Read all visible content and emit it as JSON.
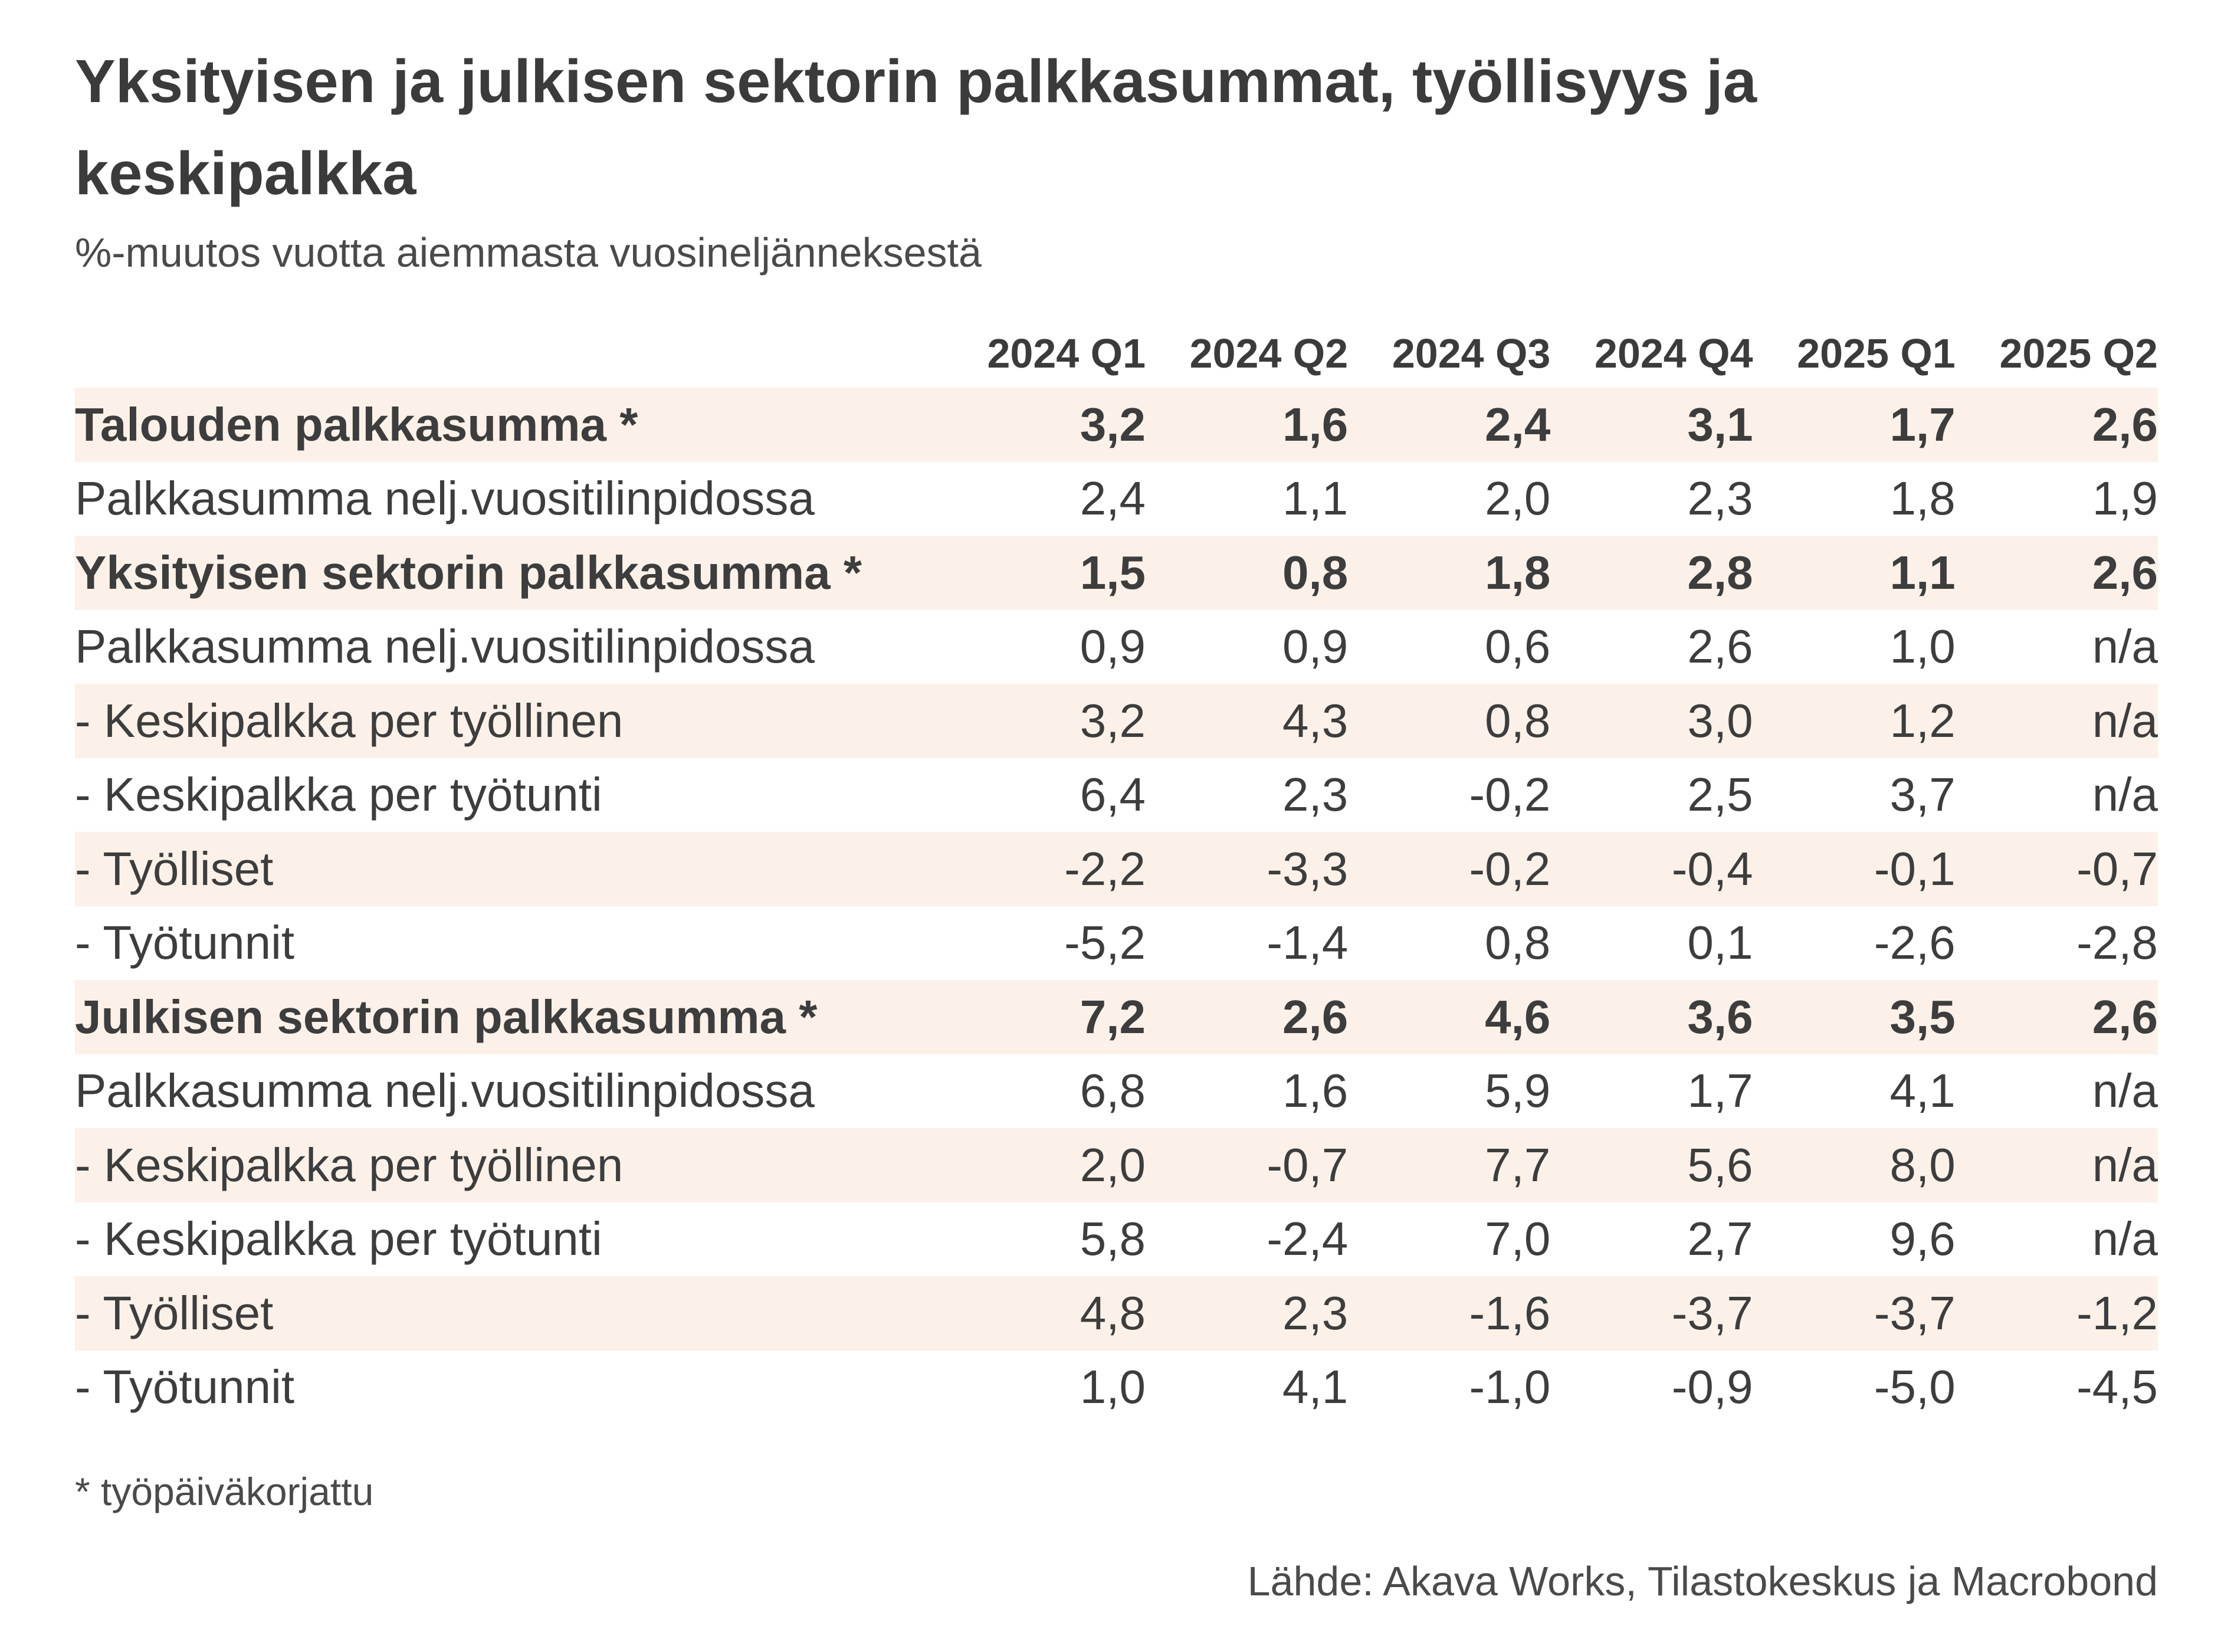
{
  "title": "Yksityisen ja julkisen sektorin palkkasummat, työllisyys ja keskipalkka",
  "subtitle": "%-muutos vuotta aiemmasta vuosineljänneksestä",
  "footnote": "* työpäiväkorjattu",
  "source": "Lähde: Akava Works, Tilastokeskus ja Macrobond",
  "colors": {
    "row_shade": "#fbf1e8",
    "text": "#3b3b3b"
  },
  "chart_data": {
    "type": "table",
    "title": "Yksityisen ja julkisen sektorin palkkasummat, työllisyys ja keskipalkka",
    "subtitle": "%-muutos vuotta aiemmasta vuosineljänneksestä",
    "columns": [
      "2024 Q1",
      "2024 Q2",
      "2024 Q3",
      "2024 Q4",
      "2025 Q1",
      "2025 Q2"
    ],
    "rows": [
      {
        "label": "Talouden palkkasumma *",
        "bold": true,
        "shaded": true,
        "values": [
          "3,2",
          "1,6",
          "2,4",
          "3,1",
          "1,7",
          "2,6"
        ]
      },
      {
        "label": "Palkkasumma nelj.vuositilinpidossa",
        "bold": false,
        "shaded": false,
        "values": [
          "2,4",
          "1,1",
          "2,0",
          "2,3",
          "1,8",
          "1,9"
        ]
      },
      {
        "label": "Yksityisen sektorin palkkasumma *",
        "bold": true,
        "shaded": true,
        "values": [
          "1,5",
          "0,8",
          "1,8",
          "2,8",
          "1,1",
          "2,6"
        ]
      },
      {
        "label": "Palkkasumma nelj.vuositilinpidossa",
        "bold": false,
        "shaded": false,
        "values": [
          "0,9",
          "0,9",
          "0,6",
          "2,6",
          "1,0",
          "n/a"
        ]
      },
      {
        "label": "- Keskipalkka per työllinen",
        "bold": false,
        "shaded": true,
        "values": [
          "3,2",
          "4,3",
          "0,8",
          "3,0",
          "1,2",
          "n/a"
        ]
      },
      {
        "label": "- Keskipalkka per työtunti",
        "bold": false,
        "shaded": false,
        "values": [
          "6,4",
          "2,3",
          "-0,2",
          "2,5",
          "3,7",
          "n/a"
        ]
      },
      {
        "label": "- Työlliset",
        "bold": false,
        "shaded": true,
        "values": [
          "-2,2",
          "-3,3",
          "-0,2",
          "-0,4",
          "-0,1",
          "-0,7"
        ]
      },
      {
        "label": "- Työtunnit",
        "bold": false,
        "shaded": false,
        "values": [
          "-5,2",
          "-1,4",
          "0,8",
          "0,1",
          "-2,6",
          "-2,8"
        ]
      },
      {
        "label": "Julkisen sektorin palkkasumma *",
        "bold": true,
        "shaded": true,
        "values": [
          "7,2",
          "2,6",
          "4,6",
          "3,6",
          "3,5",
          "2,6"
        ]
      },
      {
        "label": "Palkkasumma nelj.vuositilinpidossa",
        "bold": false,
        "shaded": false,
        "values": [
          "6,8",
          "1,6",
          "5,9",
          "1,7",
          "4,1",
          "n/a"
        ]
      },
      {
        "label": "- Keskipalkka per työllinen",
        "bold": false,
        "shaded": true,
        "values": [
          "2,0",
          "-0,7",
          "7,7",
          "5,6",
          "8,0",
          "n/a"
        ]
      },
      {
        "label": "- Keskipalkka per työtunti",
        "bold": false,
        "shaded": false,
        "values": [
          "5,8",
          "-2,4",
          "7,0",
          "2,7",
          "9,6",
          "n/a"
        ]
      },
      {
        "label": "- Työlliset",
        "bold": false,
        "shaded": true,
        "values": [
          "4,8",
          "2,3",
          "-1,6",
          "-3,7",
          "-3,7",
          "-1,2"
        ]
      },
      {
        "label": "- Työtunnit",
        "bold": false,
        "shaded": false,
        "values": [
          "1,0",
          "4,1",
          "-1,0",
          "-0,9",
          "-5,0",
          "-4,5"
        ]
      }
    ]
  }
}
